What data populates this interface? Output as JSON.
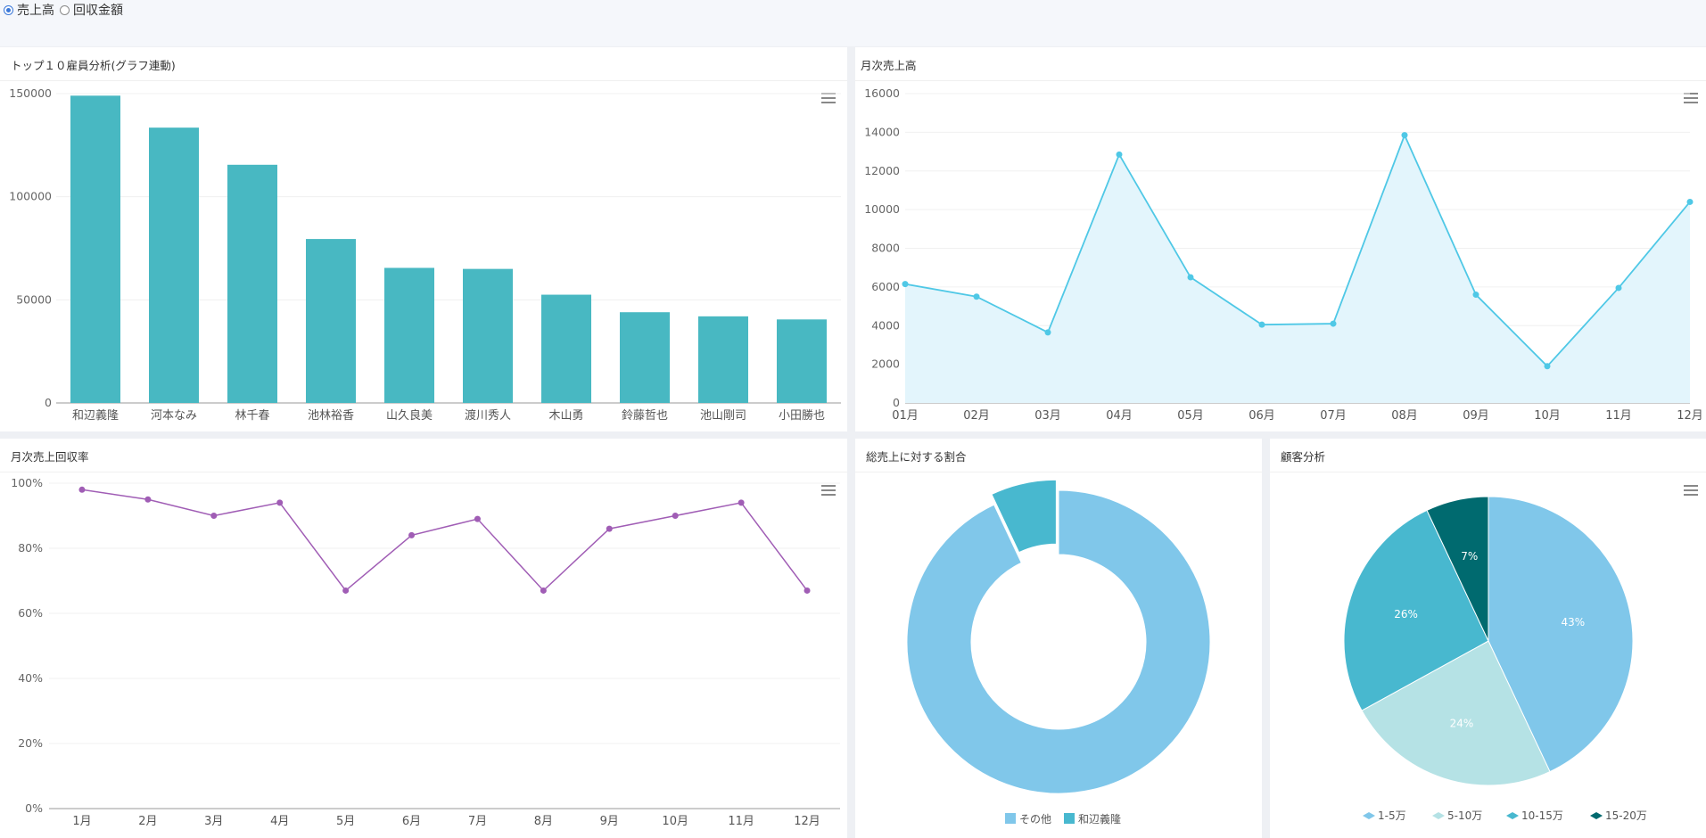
{
  "controls": {
    "options": [
      {
        "label": "売上高",
        "checked": true
      },
      {
        "label": "回収金額",
        "checked": false
      }
    ]
  },
  "colors": {
    "bar": "#48b8c2",
    "line": "#4fc8e6",
    "area": "#e3f5fc",
    "rate": "#a05db5",
    "donut_other": "#80c7ea",
    "donut_main": "#48b8cf",
    "pie": [
      "#80c7ea",
      "#b5e2e5",
      "#48b8cf",
      "#006a6f"
    ]
  },
  "chart_data": [
    {
      "id": "top10",
      "type": "bar",
      "title": "トップ１０雇員分析(グラフ連動)",
      "categories": [
        "和辺義隆",
        "河本なみ",
        "林千春",
        "池林裕香",
        "山久良美",
        "渡川秀人",
        "木山勇",
        "鈴藤哲也",
        "池山剛司",
        "小田勝也"
      ],
      "values": [
        149000,
        133500,
        115500,
        79500,
        65500,
        65000,
        52500,
        44000,
        42000,
        40500
      ],
      "ylim": [
        0,
        150000
      ],
      "yticks": [
        0,
        50000,
        100000,
        150000
      ],
      "grid": true
    },
    {
      "id": "monthly",
      "type": "area",
      "title": "月次売上高",
      "categories": [
        "01月",
        "02月",
        "03月",
        "04月",
        "05月",
        "06月",
        "07月",
        "08月",
        "09月",
        "10月",
        "11月",
        "12月"
      ],
      "values": [
        6150,
        5500,
        3650,
        12850,
        6500,
        4050,
        4100,
        13850,
        5600,
        1900,
        5950,
        10400
      ],
      "ylim": [
        0,
        16000
      ],
      "yticks": [
        0,
        2000,
        4000,
        6000,
        8000,
        10000,
        12000,
        14000,
        16000
      ],
      "grid": true
    },
    {
      "id": "rate",
      "type": "line",
      "title": "月次売上回収率",
      "categories": [
        "1月",
        "2月",
        "3月",
        "4月",
        "5月",
        "6月",
        "7月",
        "8月",
        "9月",
        "10月",
        "11月",
        "12月"
      ],
      "values": [
        98,
        95,
        90,
        94,
        67,
        84,
        89,
        67,
        86,
        90,
        94,
        67
      ],
      "ylim": [
        0,
        100
      ],
      "yticks": [
        "0%",
        "20%",
        "40%",
        "60%",
        "80%",
        "100%"
      ],
      "grid": true
    },
    {
      "id": "share",
      "type": "pie",
      "title": "総売上に対する割合",
      "slices": [
        {
          "name": "その他",
          "value": 93
        },
        {
          "name": "和辺義隆",
          "value": 7
        }
      ],
      "donut": true,
      "legend": "bottom"
    },
    {
      "id": "customer",
      "type": "pie",
      "title": "顧客分析",
      "slices": [
        {
          "name": "1-5万",
          "value": 43,
          "label": "43%"
        },
        {
          "name": "5-10万",
          "value": 24,
          "label": "24%"
        },
        {
          "name": "10-15万",
          "value": 26,
          "label": "26%"
        },
        {
          "name": "15-20万",
          "value": 7,
          "label": "7%"
        }
      ],
      "legend": "bottom"
    }
  ]
}
